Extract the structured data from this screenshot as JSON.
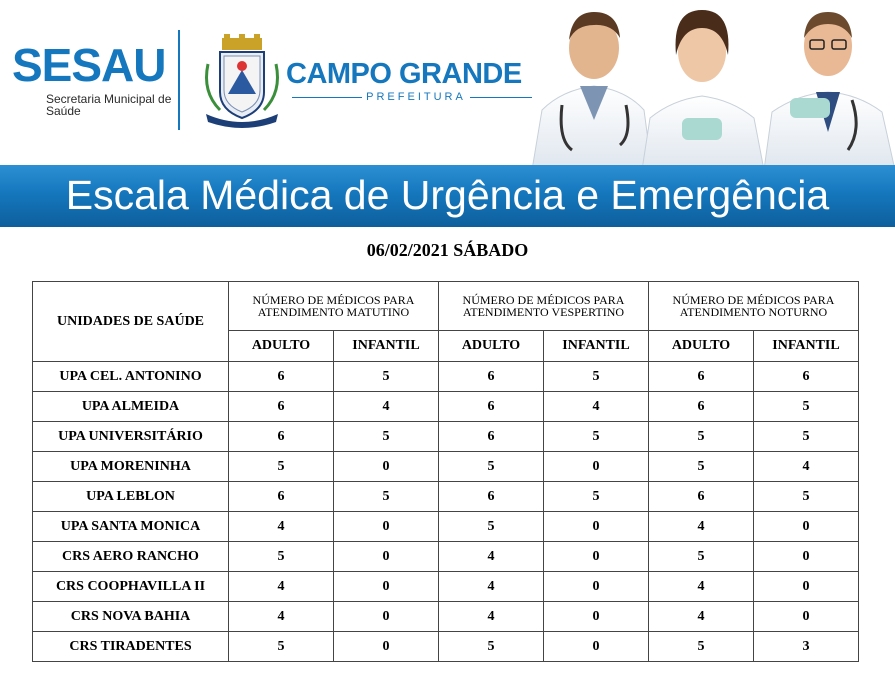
{
  "header": {
    "logo_text": "SESAU",
    "logo_subtitle": "Secretaria Municipal de Saúde",
    "city_title": "CAMPO GRANDE",
    "city_subtitle": "PREFEITURA",
    "brand_color": "#1577bd",
    "crest_icon": "coat-of-arms-icon",
    "photo_description_icon": "doctors-photo"
  },
  "banner": {
    "title": "Escala Médica de Urgência e Emergência"
  },
  "date_title": "06/02/2021 SÁBADO",
  "table": {
    "unit_header": "UNIDADES DE SAÚDE",
    "groups": [
      {
        "label": "NÚMERO DE MÉDICOS PARA ATENDIMENTO MATUTINO"
      },
      {
        "label": "NÚMERO DE MÉDICOS PARA ATENDIMENTO VESPERTINO"
      },
      {
        "label": "NÚMERO DE MÉDICOS PARA ATENDIMENTO NOTURNO"
      }
    ],
    "subheaders": [
      "ADULTO",
      "INFANTIL",
      "ADULTO",
      "INFANTIL",
      "ADULTO",
      "INFANTIL"
    ],
    "rows": [
      {
        "unit": "UPA CEL. ANTONINO",
        "values": [
          "6",
          "5",
          "6",
          "5",
          "6",
          "6"
        ]
      },
      {
        "unit": "UPA ALMEIDA",
        "values": [
          "6",
          "4",
          "6",
          "4",
          "6",
          "5"
        ]
      },
      {
        "unit": "UPA UNIVERSITÁRIO",
        "values": [
          "6",
          "5",
          "6",
          "5",
          "5",
          "5"
        ]
      },
      {
        "unit": "UPA MORENINHA",
        "values": [
          "5",
          "0",
          "5",
          "0",
          "5",
          "4"
        ]
      },
      {
        "unit": "UPA LEBLON",
        "values": [
          "6",
          "5",
          "6",
          "5",
          "6",
          "5"
        ]
      },
      {
        "unit": "UPA SANTA MONICA",
        "values": [
          "4",
          "0",
          "5",
          "0",
          "4",
          "0"
        ]
      },
      {
        "unit": "CRS AERO RANCHO",
        "values": [
          "5",
          "0",
          "4",
          "0",
          "5",
          "0"
        ]
      },
      {
        "unit": "CRS COOPHAVILLA II",
        "values": [
          "4",
          "0",
          "4",
          "0",
          "4",
          "0"
        ]
      },
      {
        "unit": "CRS NOVA BAHIA",
        "values": [
          "4",
          "0",
          "4",
          "0",
          "4",
          "0"
        ]
      },
      {
        "unit": "CRS TIRADENTES",
        "values": [
          "5",
          "0",
          "5",
          "0",
          "5",
          "3"
        ]
      }
    ]
  }
}
